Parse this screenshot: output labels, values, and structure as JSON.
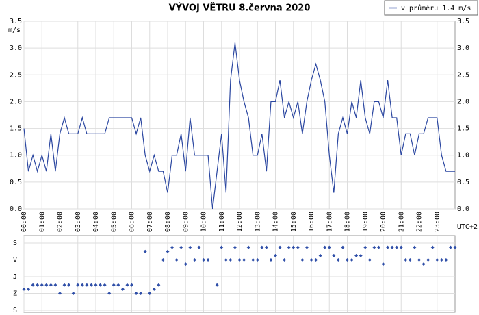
{
  "chart_data": [
    {
      "type": "line",
      "title": "VÝVOJ VĚTRU  8.června 2020",
      "ylabel": "m/s",
      "xlabel": "UTC+2",
      "legend": "top-right",
      "grid": true,
      "xlim": [
        0,
        24
      ],
      "xticks": [
        {
          "value": 0,
          "label": "00:00"
        },
        {
          "value": 1,
          "label": "01:00"
        },
        {
          "value": 2,
          "label": "02:00"
        },
        {
          "value": 3,
          "label": "03:00"
        },
        {
          "value": 4,
          "label": "04:00"
        },
        {
          "value": 5,
          "label": "05:00"
        },
        {
          "value": 6,
          "label": "06:00"
        },
        {
          "value": 7,
          "label": "07:00"
        },
        {
          "value": 8,
          "label": "08:00"
        },
        {
          "value": 9,
          "label": "09:00"
        },
        {
          "value": 10,
          "label": "10:00"
        },
        {
          "value": 11,
          "label": "11:00"
        },
        {
          "value": 12,
          "label": "12:00"
        },
        {
          "value": 13,
          "label": "13:00"
        },
        {
          "value": 14,
          "label": "14:00"
        },
        {
          "value": 15,
          "label": "15:00"
        },
        {
          "value": 16,
          "label": "16:00"
        },
        {
          "value": 17,
          "label": "17:00"
        },
        {
          "value": 18,
          "label": "18:00"
        },
        {
          "value": 19,
          "label": "19:00"
        },
        {
          "value": 20,
          "label": "20:00"
        },
        {
          "value": 21,
          "label": "21:00"
        },
        {
          "value": 22,
          "label": "22:00"
        },
        {
          "value": 23,
          "label": "23:00"
        }
      ],
      "ylim": [
        0,
        3.5
      ],
      "yticks": [
        {
          "value": 0,
          "label": "0.0"
        },
        0.5,
        {
          "value": 1,
          "label": "1.0"
        },
        1.5,
        {
          "value": 2,
          "label": "2.0"
        },
        2.5,
        {
          "value": 3,
          "label": "3.0"
        },
        3.5
      ],
      "x": [
        0,
        0.25,
        0.5,
        0.75,
        1,
        1.25,
        1.5,
        1.75,
        2,
        2.25,
        2.5,
        2.75,
        3,
        3.25,
        3.5,
        3.75,
        4,
        4.25,
        4.5,
        4.75,
        5,
        5.25,
        5.5,
        5.75,
        6,
        6.25,
        6.5,
        6.75,
        7,
        7.25,
        7.5,
        7.75,
        8,
        8.25,
        8.5,
        8.75,
        9,
        9.25,
        9.5,
        9.75,
        10,
        10.25,
        10.5,
        10.75,
        11,
        11.25,
        11.5,
        11.75,
        12,
        12.25,
        12.5,
        12.75,
        13,
        13.25,
        13.5,
        13.75,
        14,
        14.25,
        14.5,
        14.75,
        15,
        15.25,
        15.5,
        15.75,
        16,
        16.25,
        16.5,
        16.75,
        17,
        17.25,
        17.5,
        17.75,
        18,
        18.25,
        18.5,
        18.75,
        19,
        19.25,
        19.5,
        19.75,
        20,
        20.25,
        20.5,
        20.75,
        21,
        21.25,
        21.5,
        21.75,
        22,
        22.25,
        22.5,
        22.75,
        23,
        23.25,
        23.5,
        23.75,
        24
      ],
      "series": [
        {
          "name": "v průměru 1.4 m/s",
          "color": "#2a46a0",
          "values": [
            1.5,
            0.7,
            1.0,
            0.7,
            1.0,
            0.7,
            1.4,
            0.7,
            1.4,
            1.7,
            1.4,
            1.4,
            1.4,
            1.7,
            1.4,
            1.4,
            1.4,
            1.4,
            1.4,
            1.7,
            1.7,
            1.7,
            1.7,
            1.7,
            1.7,
            1.4,
            1.7,
            1.0,
            0.7,
            1.0,
            0.7,
            0.7,
            0.3,
            1.0,
            1.0,
            1.4,
            0.7,
            1.7,
            1.0,
            1.0,
            1.0,
            1.0,
            0.0,
            0.7,
            1.4,
            0.3,
            2.4,
            3.1,
            2.4,
            2.0,
            1.7,
            1.0,
            1.0,
            1.4,
            0.7,
            2.0,
            2.0,
            2.4,
            1.7,
            2.0,
            1.7,
            2.0,
            1.4,
            2.0,
            2.4,
            2.7,
            2.4,
            2.0,
            1.0,
            0.3,
            1.4,
            1.7,
            1.4,
            2.0,
            1.7,
            2.4,
            1.7,
            1.4,
            2.0,
            2.0,
            1.7,
            2.4,
            1.7,
            1.7,
            1.0,
            1.4,
            1.4,
            1.0,
            1.4,
            1.4,
            1.7,
            1.7,
            1.7,
            1.0,
            0.7,
            0.7,
            0.7
          ]
        }
      ]
    },
    {
      "type": "scatter",
      "color": "#2f4fa8",
      "grid": true,
      "xlim": [
        0,
        24
      ],
      "ylim": [
        0,
        360
      ],
      "yticks": [
        {
          "value": 0,
          "label": "S"
        },
        {
          "value": 90,
          "label": "Z"
        },
        {
          "value": 180,
          "label": "J"
        },
        {
          "value": 270,
          "label": "V"
        },
        {
          "value": 360,
          "label": "S"
        }
      ],
      "x": [
        0,
        0.25,
        0.5,
        0.75,
        1,
        1.25,
        1.5,
        1.75,
        2,
        2.25,
        2.5,
        2.75,
        3,
        3.25,
        3.5,
        3.75,
        4,
        4.25,
        4.5,
        4.75,
        5,
        5.25,
        5.5,
        5.75,
        6,
        6.25,
        6.5,
        6.75,
        7,
        7.25,
        7.5,
        7.75,
        8,
        8.25,
        8.5,
        8.75,
        9,
        9.25,
        9.5,
        9.75,
        10,
        10.25,
        10.5,
        10.75,
        11,
        11.25,
        11.5,
        11.75,
        12,
        12.25,
        12.5,
        12.75,
        13,
        13.25,
        13.5,
        13.75,
        14,
        14.25,
        14.5,
        14.75,
        15,
        15.25,
        15.5,
        15.75,
        16,
        16.25,
        16.5,
        16.75,
        17,
        17.25,
        17.5,
        17.75,
        18,
        18.25,
        18.5,
        18.75,
        19,
        19.25,
        19.5,
        19.75,
        20,
        20.25,
        20.5,
        20.75,
        21,
        21.25,
        21.5,
        21.75,
        22,
        22.25,
        22.5,
        22.75,
        23,
        23.25,
        23.5,
        23.75,
        24
      ],
      "values": [
        112.5,
        112.5,
        135,
        135,
        135,
        135,
        135,
        135,
        90,
        135,
        135,
        90,
        135,
        135,
        135,
        135,
        135,
        135,
        135,
        90,
        135,
        135,
        112.5,
        135,
        135,
        90,
        90,
        315,
        90,
        112.5,
        135,
        270,
        315,
        337.5,
        270,
        337.5,
        247.5,
        337.5,
        270,
        337.5,
        270,
        270,
        null,
        135,
        337.5,
        270,
        270,
        337.5,
        270,
        270,
        337.5,
        270,
        270,
        337.5,
        337.5,
        270,
        292.5,
        337.5,
        270,
        337.5,
        337.5,
        337.5,
        270,
        337.5,
        270,
        270,
        292.5,
        337.5,
        337.5,
        292.5,
        270,
        337.5,
        270,
        270,
        292.5,
        292.5,
        337.5,
        270,
        337.5,
        337.5,
        247.5,
        337.5,
        337.5,
        337.5,
        337.5,
        270,
        270,
        337.5,
        270,
        247.5,
        270,
        337.5,
        270,
        270,
        270,
        337.5,
        337.5
      ]
    }
  ]
}
